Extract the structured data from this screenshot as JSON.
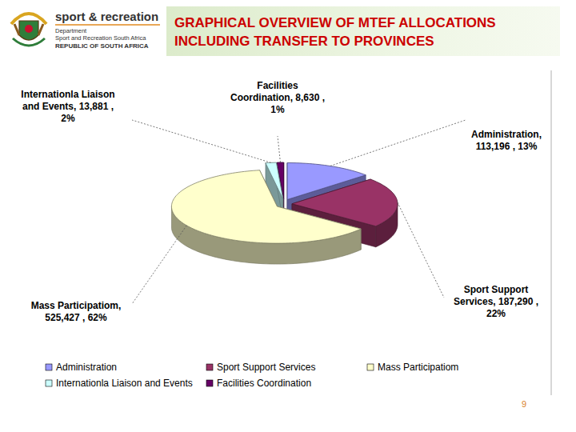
{
  "header": {
    "logo_title": "sport & recreation",
    "logo_department": "Department",
    "logo_subtitle": "Sport and Recreation South Africa",
    "logo_country": "REPUBLIC OF SOUTH AFRICA"
  },
  "chart_data": {
    "type": "pie",
    "title": "GRAPHICAL OVERVIEW OF MTEF ALLOCATIONS INCLUDING TRANSFER TO PROVINCES",
    "categories": [
      "Administration",
      "Sport Support Services",
      "Mass Participatiom",
      "Internationla Liaison and Events",
      "Facilities Coordination"
    ],
    "values": [
      113196,
      187290,
      525427,
      13881,
      8630
    ],
    "value_labels": [
      "Administration,\n113,196 , 13%",
      "Sport Support\nServices, 187,290 ,\n22%",
      "Mass Participatiom,\n525,427 , 62%",
      "Internationla Liaison\nand Events, 13,881 ,\n2%",
      "Facilities\nCoordination, 8,630 ,\n1%"
    ],
    "colors": [
      "#9999ff",
      "#993366",
      "#ffffcc",
      "#ccffff",
      "#660066"
    ],
    "data_labels": true,
    "legend": "bottom"
  },
  "footer": {
    "page_number": 9
  }
}
